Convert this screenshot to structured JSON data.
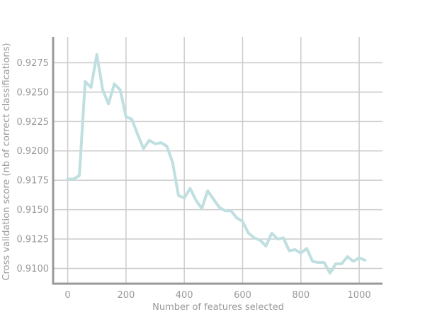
{
  "chart_data": {
    "type": "line",
    "title": "",
    "xlabel": "Number of features selected",
    "ylabel": "Cross validation score (nb of correct classifications)",
    "xlim": [
      -50,
      1080
    ],
    "ylim": [
      0.9087,
      0.9297
    ],
    "xticks": [
      0,
      200,
      400,
      600,
      800,
      1000
    ],
    "xtick_labels": [
      "0",
      "200",
      "400",
      "600",
      "800",
      "1000"
    ],
    "yticks": [
      0.91,
      0.9125,
      0.915,
      0.9175,
      0.92,
      0.9225,
      0.925,
      0.9275
    ],
    "ytick_labels": [
      "0.9100",
      "0.9125",
      "0.9150",
      "0.9175",
      "0.9200",
      "0.9225",
      "0.9250",
      "0.9275"
    ],
    "grid": true,
    "legend": "none",
    "colors": {
      "line": "#bfdfe0",
      "grid": "#cccccc",
      "spine": "#999999",
      "text": "#999999"
    },
    "series": [
      {
        "x": [
          0,
          20,
          40,
          60,
          80,
          100,
          120,
          140,
          160,
          180,
          200,
          220,
          240,
          260,
          280,
          300,
          320,
          340,
          360,
          380,
          400,
          420,
          440,
          460,
          480,
          500,
          520,
          540,
          560,
          580,
          600,
          620,
          640,
          660,
          680,
          700,
          720,
          740,
          760,
          780,
          800,
          820,
          840,
          860,
          880,
          900,
          920,
          940,
          960,
          980,
          1000,
          1020
        ],
        "values": [
          0.9176,
          0.9176,
          0.9179,
          0.9259,
          0.9254,
          0.9282,
          0.9252,
          0.924,
          0.9257,
          0.9252,
          0.9229,
          0.9227,
          0.9214,
          0.9202,
          0.9209,
          0.9206,
          0.9207,
          0.9204,
          0.919,
          0.9162,
          0.916,
          0.9168,
          0.9158,
          0.9151,
          0.9166,
          0.9159,
          0.9152,
          0.9149,
          0.9149,
          0.9143,
          0.914,
          0.913,
          0.9126,
          0.9124,
          0.9119,
          0.913,
          0.9125,
          0.9126,
          0.9115,
          0.9116,
          0.9113,
          0.9117,
          0.9106,
          0.9105,
          0.9105,
          0.9096,
          0.9104,
          0.9104,
          0.911,
          0.9106,
          0.9109,
          0.9107
        ]
      }
    ]
  }
}
